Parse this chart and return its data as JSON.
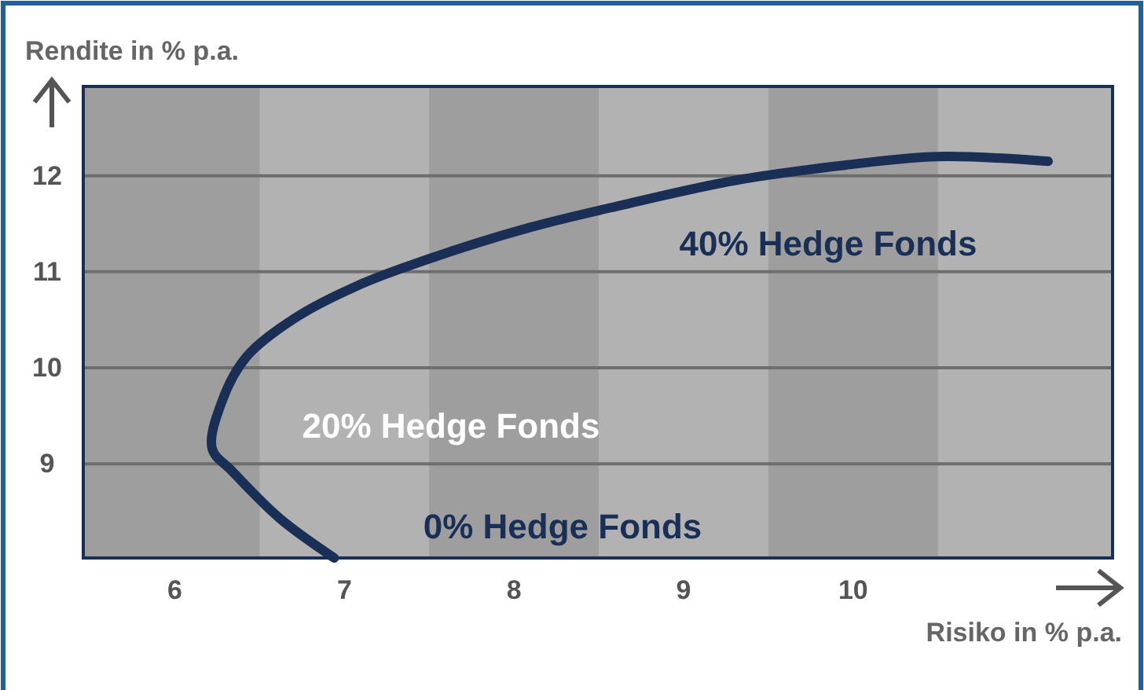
{
  "chart_data": {
    "type": "line",
    "xlabel": "Risiko in % p.a.",
    "ylabel": "Rendite in % p.a.",
    "xlim": [
      5.46,
      11.53
    ],
    "ylim": [
      8.02,
      12.93
    ],
    "xticks": [
      6,
      7,
      8,
      9,
      10
    ],
    "yticks": [
      9,
      10,
      11,
      12
    ],
    "grid": "y",
    "series": [
      {
        "color": "#1a2f55",
        "x": [
          6.94,
          6.62,
          6.34,
          6.22,
          6.28,
          6.42,
          6.71,
          7.07,
          7.49,
          8.09,
          8.65,
          9.3,
          9.95,
          10.5,
          11.15
        ],
        "values": [
          8.02,
          8.43,
          8.92,
          9.16,
          9.66,
          10.11,
          10.52,
          10.85,
          11.13,
          11.46,
          11.7,
          11.95,
          12.11,
          12.2,
          12.15
        ]
      }
    ],
    "bands": [
      {
        "axis": "x",
        "from": 5.46,
        "to": 6.5,
        "color": "#9e9e9e"
      },
      {
        "axis": "x",
        "from": 7.5,
        "to": 8.5,
        "color": "#9e9e9e"
      },
      {
        "axis": "x",
        "from": 9.5,
        "to": 10.5,
        "color": "#9e9e9e"
      }
    ],
    "annotations": [
      "40% Hedge Fonds",
      "20% Hedge Fonds",
      "0% Hedge Fonds"
    ]
  }
}
